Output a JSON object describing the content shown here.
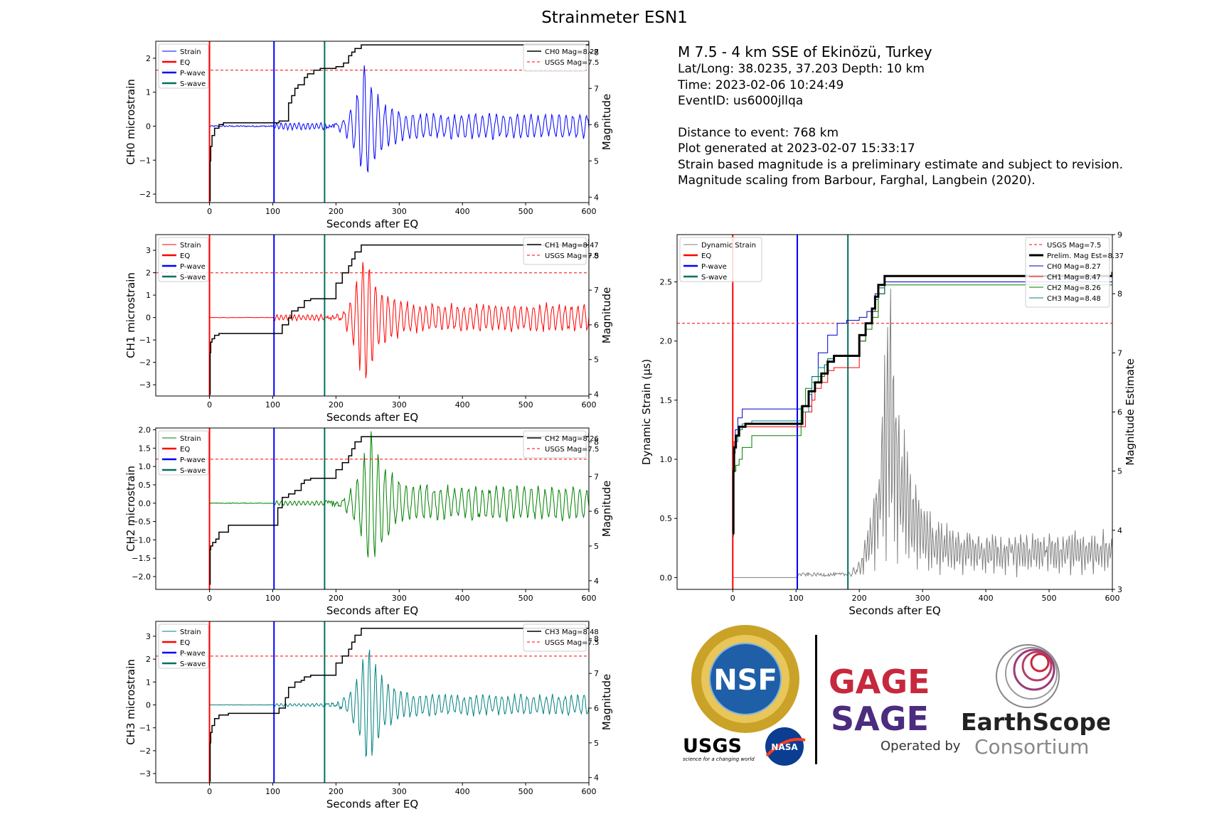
{
  "title": "Strainmeter ESN1",
  "info": {
    "headline": "M 7.5 - 4 km SSE of Ekinözü, Turkey",
    "latlong": "Lat/Long: 38.0235, 37.203  Depth: 10 km",
    "time": "Time: 2023-02-06 10:24:49",
    "event_id": "EventID: us6000jllqa",
    "distance": "Distance to event: 768 km",
    "generated": "Plot generated at 2023-02-07 15:33:17",
    "note1": "Strain based magnitude is a preliminary estimate and subject to revision.",
    "note2": "Magnitude scaling from Barbour, Farghal, Langbein (2020)."
  },
  "logos": {
    "nsf": "NSF",
    "usgs": "USGS",
    "usgs_tagline": "science for a changing world",
    "nasa": "NASA",
    "gage": "GAGE",
    "sage": "SAGE",
    "operated_by": "Operated by",
    "earthscope": "EarthScope",
    "consortium": "Consortium"
  },
  "colors": {
    "eq": "#ff0000",
    "p_wave": "#0000ff",
    "s_wave": "#007060",
    "usgs": "#ff0000",
    "mag": "#000000"
  },
  "chart_data": [
    {
      "type": "line",
      "id": "ch0",
      "xlabel": "Seconds after EQ",
      "ylabel": "CH0 microstrain",
      "y2label": "Magnitude",
      "xlim": [
        -85,
        600
      ],
      "ylim": [
        -2.25,
        2.5
      ],
      "y2lim": [
        3.85,
        8.3
      ],
      "xticks": [
        0,
        100,
        200,
        300,
        400,
        500,
        600
      ],
      "yticks": [
        -2,
        -1,
        0,
        1,
        2
      ],
      "y2ticks": [
        4,
        5,
        6,
        7,
        8
      ],
      "color": "#0000ff",
      "eq_time": 0,
      "p_time": 102,
      "s_time": 182,
      "usgs_mag": 7.5,
      "legend_left": [
        "Strain",
        "EQ",
        "P-wave",
        "S-wave"
      ],
      "legend_right": [
        "CH0 Mag=8.27",
        "USGS Mag=7.5"
      ],
      "magnitude": {
        "t": [
          0,
          1,
          2,
          4,
          8,
          15,
          22,
          40,
          90,
          102,
          110,
          125,
          130,
          135,
          140,
          150,
          155,
          165,
          175,
          180,
          200,
          210,
          212,
          220,
          225,
          230,
          240,
          600
        ],
        "m": [
          3.9,
          5.0,
          5.4,
          5.7,
          5.9,
          6.0,
          6.05,
          6.05,
          6.05,
          6.05,
          6.1,
          6.6,
          6.8,
          7.0,
          7.1,
          7.3,
          7.4,
          7.5,
          7.55,
          7.55,
          7.6,
          7.6,
          7.7,
          7.9,
          8.0,
          8.1,
          8.2,
          8.27
        ]
      },
      "strain": {
        "pre_amp": 0.02,
        "p_amp": 0.12,
        "main_peak": 2.0,
        "main_t": 245,
        "coda_amp": 0.35,
        "period": 11,
        "end": 0.05
      }
    },
    {
      "type": "line",
      "id": "ch1",
      "xlabel": "Seconds after EQ",
      "ylabel": "CH1 microstrain",
      "y2label": "Magnitude",
      "xlim": [
        -85,
        600
      ],
      "ylim": [
        -3.5,
        3.7
      ],
      "y2lim": [
        3.95,
        8.6
      ],
      "xticks": [
        0,
        100,
        200,
        300,
        400,
        500,
        600
      ],
      "yticks": [
        -3,
        -2,
        -1,
        0,
        1,
        2,
        3
      ],
      "y2ticks": [
        4,
        5,
        6,
        7,
        8
      ],
      "color": "#ff0000",
      "eq_time": 0,
      "p_time": 102,
      "s_time": 182,
      "usgs_mag": 7.5,
      "legend_left": [
        "Strain",
        "EQ",
        "P-wave",
        "S-wave"
      ],
      "legend_right": [
        "CH1 Mag=8.47",
        "USGS Mag=7.5"
      ],
      "magnitude": {
        "t": [
          0,
          1,
          2,
          4,
          8,
          15,
          40,
          100,
          102,
          115,
          125,
          130,
          140,
          150,
          160,
          175,
          180,
          200,
          210,
          220,
          225,
          230,
          240,
          600
        ],
        "m": [
          4.0,
          5.2,
          5.5,
          5.6,
          5.7,
          5.75,
          5.75,
          5.75,
          5.75,
          6.0,
          6.2,
          6.4,
          6.5,
          6.7,
          6.75,
          6.75,
          6.75,
          7.2,
          7.5,
          7.7,
          7.9,
          8.1,
          8.3,
          8.47
        ]
      },
      "strain": {
        "pre_amp": 0.01,
        "p_amp": 0.15,
        "main_peak": 3.4,
        "main_t": 245,
        "coda_amp": 0.6,
        "period": 10,
        "end": 0.1
      }
    },
    {
      "type": "line",
      "id": "ch2",
      "xlabel": "Seconds after EQ",
      "ylabel": "CH2 microstrain",
      "y2label": "Magnitude",
      "xlim": [
        -85,
        600
      ],
      "ylim": [
        -2.35,
        2.05
      ],
      "y2lim": [
        3.75,
        8.4
      ],
      "xticks": [
        0,
        100,
        200,
        300,
        400,
        500,
        600
      ],
      "yticks": [
        -2.0,
        -1.5,
        -1.0,
        -0.5,
        0.0,
        0.5,
        1.0,
        1.5,
        2.0
      ],
      "ydecimals": 1,
      "y2ticks": [
        4,
        5,
        6,
        7,
        8
      ],
      "color": "#008000",
      "eq_time": 0,
      "p_time": 102,
      "s_time": 182,
      "usgs_mag": 7.5,
      "legend_left": [
        "Strain",
        "EQ",
        "P-wave",
        "S-wave"
      ],
      "legend_right": [
        "CH2 Mag=8.26",
        "USGS Mag=7.5"
      ],
      "magnitude": {
        "t": [
          0,
          1,
          2,
          5,
          10,
          15,
          30,
          100,
          102,
          108,
          115,
          125,
          135,
          145,
          150,
          160,
          175,
          180,
          200,
          210,
          220,
          225,
          230,
          240,
          600
        ],
        "m": [
          3.9,
          4.9,
          5.0,
          5.1,
          5.2,
          5.4,
          5.6,
          5.6,
          5.6,
          6.1,
          6.4,
          6.5,
          6.6,
          6.8,
          6.9,
          6.95,
          6.95,
          6.95,
          7.2,
          7.4,
          7.6,
          7.8,
          8.0,
          8.15,
          8.26
        ]
      },
      "strain": {
        "pre_amp": 0.01,
        "p_amp": 0.07,
        "main_peak": 2.15,
        "main_t": 255,
        "coda_amp": 0.45,
        "period": 11,
        "end": 0.05
      }
    },
    {
      "type": "line",
      "id": "ch3",
      "xlabel": "Seconds after EQ",
      "ylabel": "CH3 microstrain",
      "y2label": "Magnitude",
      "xlim": [
        -85,
        600
      ],
      "ylim": [
        -3.4,
        3.65
      ],
      "y2lim": [
        3.85,
        8.5
      ],
      "xticks": [
        0,
        100,
        200,
        300,
        400,
        500,
        600
      ],
      "yticks": [
        -3,
        -2,
        -1,
        0,
        1,
        2,
        3
      ],
      "y2ticks": [
        4,
        5,
        6,
        7,
        8
      ],
      "color": "#008080",
      "eq_time": 0,
      "p_time": 102,
      "s_time": 182,
      "usgs_mag": 7.5,
      "legend_left": [
        "Strain",
        "EQ",
        "P-wave",
        "S-wave"
      ],
      "legend_right": [
        "CH3 Mag=8.48",
        "USGS Mag=7.5"
      ],
      "magnitude": {
        "t": [
          0,
          1,
          2,
          4,
          8,
          15,
          30,
          100,
          102,
          110,
          120,
          125,
          135,
          145,
          150,
          160,
          175,
          180,
          200,
          210,
          220,
          225,
          230,
          240,
          600
        ],
        "m": [
          3.9,
          5.0,
          5.3,
          5.5,
          5.7,
          5.8,
          5.85,
          5.85,
          5.85,
          6.0,
          6.3,
          6.6,
          6.75,
          6.8,
          6.9,
          6.95,
          6.95,
          6.95,
          7.3,
          7.5,
          7.7,
          7.9,
          8.1,
          8.3,
          8.48
        ]
      },
      "strain": {
        "pre_amp": 0.01,
        "p_amp": 0.08,
        "main_peak": 3.1,
        "main_t": 250,
        "coda_amp": 0.45,
        "period": 10,
        "end": 0.1
      }
    },
    {
      "type": "line",
      "id": "summary",
      "xlabel": "Seconds after EQ",
      "ylabel": "Dynamic Strain (µs)",
      "y2label": "Magnitude Estimate",
      "xlim": [
        -88,
        600
      ],
      "ylim": [
        -0.1,
        2.9
      ],
      "y2lim": [
        3,
        9
      ],
      "xticks": [
        0,
        100,
        200,
        300,
        400,
        500,
        600
      ],
      "yticks": [
        0.0,
        0.5,
        1.0,
        1.5,
        2.0,
        2.5
      ],
      "ydecimals": 1,
      "y2ticks": [
        3,
        4,
        5,
        6,
        7,
        8,
        9
      ],
      "color": "#808080",
      "eq_time": 0,
      "p_time": 102,
      "s_time": 182,
      "usgs_mag": 7.5,
      "legend_left": [
        "Dynamic Strain",
        "EQ",
        "P-wave",
        "S-wave"
      ],
      "legend_right": [
        "USGS Mag=7.5",
        "Prelim. Mag Est=8.37",
        "CH0 Mag=8.27",
        "CH1 Mag=8.47",
        "CH2 Mag=8.26",
        "CH3 Mag=8.48"
      ],
      "dynamic_strain": {
        "pre": 0.0,
        "p_amp": 0.03,
        "peak": 2.75,
        "peak_t": 248,
        "coda": 0.35
      },
      "mag_series": [
        {
          "name": "Prelim. Mag Est=8.37",
          "color": "#000000",
          "width": 3,
          "t": [
            0,
            1,
            2,
            5,
            10,
            20,
            40,
            100,
            102,
            110,
            120,
            130,
            140,
            150,
            160,
            175,
            180,
            200,
            210,
            220,
            225,
            230,
            240,
            600
          ],
          "m": [
            3.95,
            5.0,
            5.4,
            5.6,
            5.75,
            5.8,
            5.8,
            5.8,
            5.8,
            6.1,
            6.35,
            6.5,
            6.65,
            6.85,
            6.95,
            6.95,
            6.95,
            7.3,
            7.5,
            7.75,
            7.95,
            8.15,
            8.3,
            8.37
          ]
        },
        {
          "name": "CH0 Mag=8.27",
          "color": "#0000cc",
          "width": 1,
          "t": [
            0,
            1,
            2,
            4,
            8,
            15,
            100,
            102,
            110,
            125,
            135,
            150,
            165,
            180,
            200,
            212,
            225,
            240,
            600
          ],
          "m": [
            3.9,
            5.0,
            5.4,
            5.7,
            5.9,
            6.05,
            6.05,
            6.05,
            6.1,
            6.6,
            7.0,
            7.3,
            7.5,
            7.55,
            7.6,
            7.7,
            8.0,
            8.2,
            8.27
          ]
        },
        {
          "name": "CH1 Mag=8.47",
          "color": "#ff0000",
          "width": 1,
          "t": [
            0,
            1,
            2,
            4,
            8,
            15,
            100,
            102,
            115,
            125,
            130,
            140,
            150,
            160,
            180,
            200,
            210,
            220,
            230,
            240,
            600
          ],
          "m": [
            4.0,
            5.2,
            5.5,
            5.6,
            5.7,
            5.75,
            5.75,
            5.75,
            6.0,
            6.2,
            6.4,
            6.5,
            6.7,
            6.75,
            6.75,
            7.2,
            7.5,
            7.7,
            8.1,
            8.3,
            8.47
          ]
        },
        {
          "name": "CH2 Mag=8.26",
          "color": "#008000",
          "width": 1,
          "t": [
            0,
            1,
            2,
            5,
            10,
            15,
            30,
            100,
            102,
            108,
            115,
            125,
            135,
            145,
            150,
            160,
            180,
            200,
            210,
            220,
            230,
            240,
            600
          ],
          "m": [
            3.9,
            4.9,
            5.0,
            5.1,
            5.2,
            5.4,
            5.6,
            5.6,
            5.6,
            6.1,
            6.4,
            6.5,
            6.6,
            6.8,
            6.9,
            6.95,
            6.95,
            7.2,
            7.4,
            7.6,
            8.0,
            8.15,
            8.26
          ]
        },
        {
          "name": "CH3 Mag=8.48",
          "color": "#008080",
          "width": 1,
          "t": [
            0,
            1,
            2,
            4,
            8,
            15,
            30,
            100,
            102,
            110,
            120,
            125,
            135,
            145,
            150,
            160,
            180,
            200,
            210,
            220,
            225,
            230,
            240,
            600
          ],
          "m": [
            3.9,
            5.0,
            5.3,
            5.5,
            5.7,
            5.8,
            5.85,
            5.85,
            5.85,
            6.0,
            6.3,
            6.6,
            6.75,
            6.8,
            6.9,
            6.95,
            6.95,
            7.3,
            7.5,
            7.7,
            7.9,
            8.1,
            8.3,
            8.48
          ]
        }
      ]
    }
  ]
}
